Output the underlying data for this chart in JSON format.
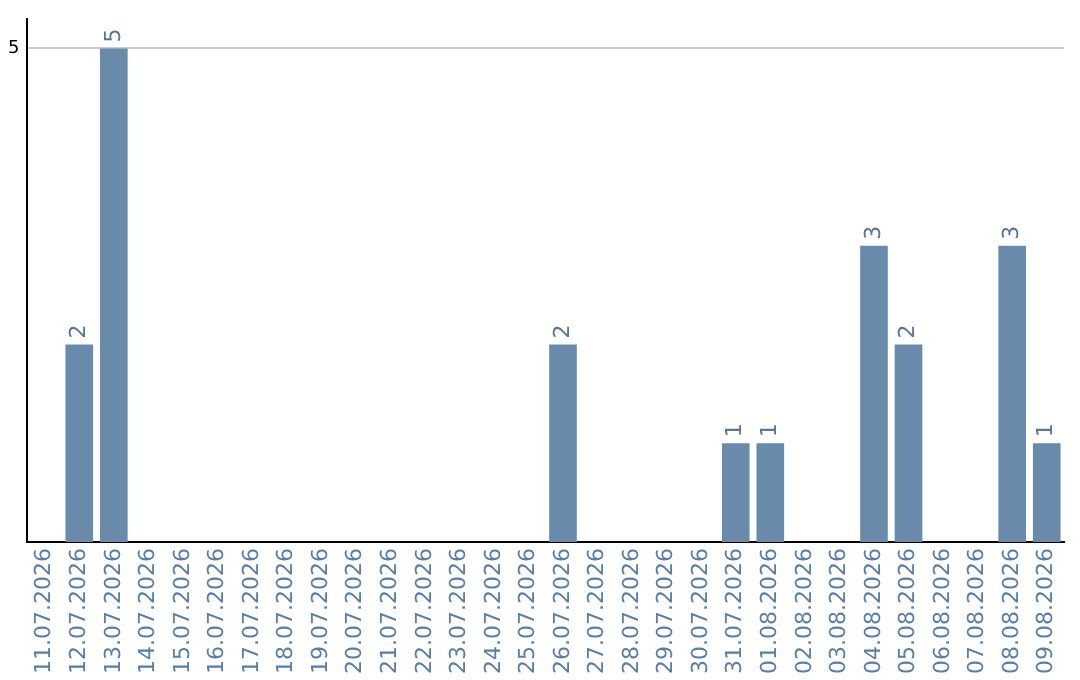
{
  "chart_data": {
    "type": "bar",
    "categories": [
      "11.07.2026",
      "12.07.2026",
      "13.07.2026",
      "14.07.2026",
      "15.07.2026",
      "16.07.2026",
      "17.07.2026",
      "18.07.2026",
      "19.07.2026",
      "20.07.2026",
      "21.07.2026",
      "22.07.2026",
      "23.07.2026",
      "24.07.2026",
      "25.07.2026",
      "26.07.2026",
      "27.07.2026",
      "28.07.2026",
      "29.07.2026",
      "30.07.2026",
      "31.07.2026",
      "01.08.2026",
      "02.08.2026",
      "03.08.2026",
      "04.08.2026",
      "05.08.2026",
      "06.08.2026",
      "07.08.2026",
      "08.08.2026",
      "09.08.2026"
    ],
    "values": [
      0,
      2,
      5,
      0,
      0,
      0,
      0,
      0,
      0,
      0,
      0,
      0,
      0,
      0,
      0,
      2,
      0,
      0,
      0,
      0,
      1,
      1,
      0,
      0,
      3,
      2,
      0,
      0,
      3,
      1
    ],
    "value_labels": [
      null,
      "2",
      "5",
      null,
      null,
      null,
      null,
      null,
      null,
      null,
      null,
      null,
      null,
      null,
      null,
      "2",
      null,
      null,
      null,
      null,
      "1",
      "1",
      null,
      null,
      "3",
      "2",
      null,
      null,
      "3",
      "1"
    ],
    "color": "#6a8aab",
    "ylim": [
      0,
      5.3
    ],
    "yticks": [
      5
    ],
    "grid": "y",
    "legend": false
  }
}
